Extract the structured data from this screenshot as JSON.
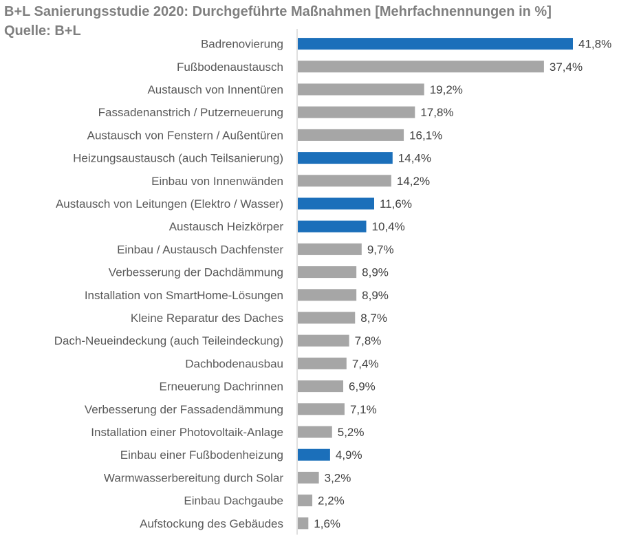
{
  "header": {
    "title": "B+L Sanierungsstudie 2020: Durchgeführte Maßnahmen [Mehrfachnennungen in %]",
    "source": "Quelle: B+L"
  },
  "colors": {
    "highlight": "#1b6fba",
    "default": "#a6a6a6",
    "axis": "#bfbfbf"
  },
  "chart_data": {
    "type": "bar",
    "orientation": "horizontal",
    "title": "B+L Sanierungsstudie 2020: Durchgeführte Maßnahmen [Mehrfachnennungen in %]",
    "categories": [
      "Badrenovierung",
      "Fußbodenaustausch",
      "Austausch von Innentüren",
      "Fassadenanstrich / Putzerneuerung",
      "Austausch von Fenstern / Außentüren",
      "Heizungsaustausch (auch Teilsanierung)",
      "Einbau von Innenwänden",
      "Austausch von Leitungen (Elektro / Wasser)",
      "Austausch Heizkörper",
      "Einbau / Austausch Dachfenster",
      "Verbesserung der Dachdämmung",
      "Installation von SmartHome-Lösungen",
      "Kleine Reparatur des Daches",
      "Dach-Neueindeckung (auch Teileindeckung)",
      "Dachbodenausbau",
      "Erneuerung Dachrinnen",
      "Verbesserung der Fassadendämmung",
      "Installation einer Photovoltaik-Anlage",
      "Einbau einer Fußbodenheizung",
      "Warmwasserbereitung durch Solar",
      "Einbau Dachgaube",
      "Aufstockung des Gebäudes"
    ],
    "values": [
      41.8,
      37.4,
      19.2,
      17.8,
      16.1,
      14.4,
      14.2,
      11.6,
      10.4,
      9.7,
      8.9,
      8.9,
      8.7,
      7.8,
      7.4,
      6.9,
      7.1,
      5.2,
      4.9,
      3.2,
      2.2,
      1.6
    ],
    "value_labels": [
      "41,8%",
      "37,4%",
      "19,2%",
      "17,8%",
      "16,1%",
      "14,4%",
      "14,2%",
      "11,6%",
      "10,4%",
      "9,7%",
      "8,9%",
      "8,9%",
      "8,7%",
      "7,8%",
      "7,4%",
      "6,9%",
      "7,1%",
      "5,2%",
      "4,9%",
      "3,2%",
      "2,2%",
      "1,6%"
    ],
    "highlighted": [
      true,
      false,
      false,
      false,
      false,
      true,
      false,
      true,
      true,
      false,
      false,
      false,
      false,
      false,
      false,
      false,
      false,
      false,
      true,
      false,
      false,
      false
    ],
    "xlim": [
      0,
      41.8
    ],
    "grid": false,
    "legend": "none"
  }
}
